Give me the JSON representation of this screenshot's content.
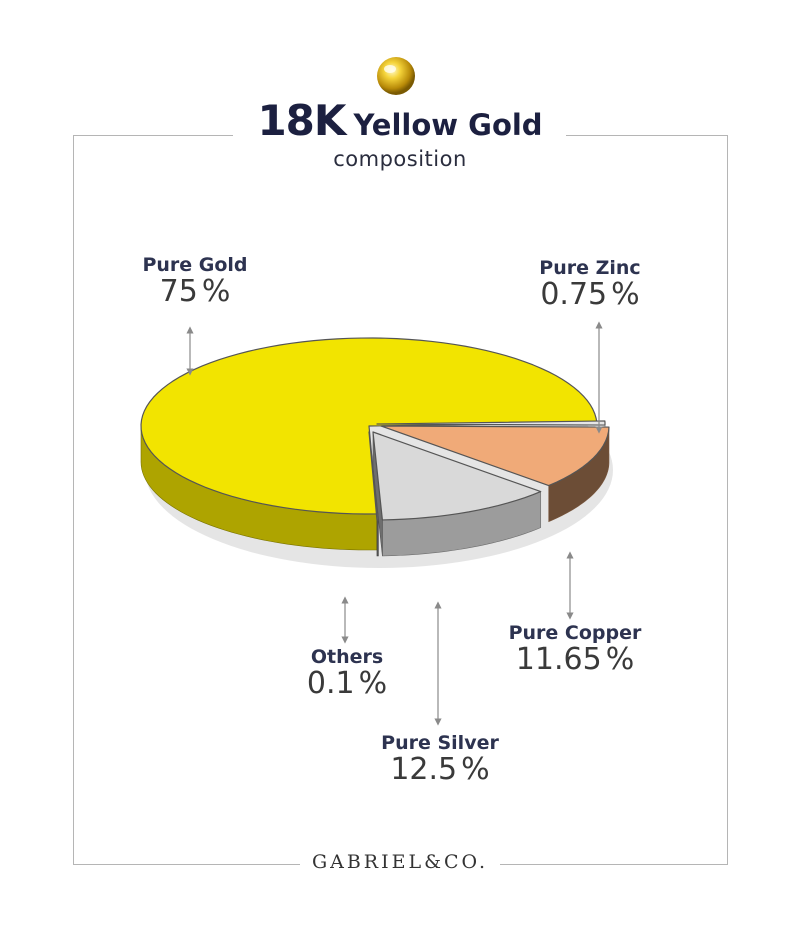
{
  "header": {
    "title_big": "18K",
    "title_rest": "Yellow Gold",
    "subtitle": "composition"
  },
  "brand": "GABRIEL&CO.",
  "chart_data": {
    "type": "pie",
    "title": "18K Yellow Gold composition",
    "unit": "%",
    "slices": [
      {
        "label": "Pure Gold",
        "value": 75,
        "display": "75",
        "color": "#f2e400"
      },
      {
        "label": "Pure Zinc",
        "value": 0.75,
        "display": "0.75",
        "color": "#e6e6e6"
      },
      {
        "label": "Pure Copper",
        "value": 11.65,
        "display": "11.65",
        "color": "#f0aa78"
      },
      {
        "label": "Pure Silver",
        "value": 12.5,
        "display": "12.5",
        "color": "#d9d9d9"
      },
      {
        "label": "Others",
        "value": 0.1,
        "display": "0.1",
        "color": "#7a7a7a"
      }
    ]
  },
  "labels": {
    "gold": {
      "name": "Pure Gold",
      "value": "75",
      "unit": "%"
    },
    "zinc": {
      "name": "Pure Zinc",
      "value": "0.75",
      "unit": "%"
    },
    "copper": {
      "name": "Pure Copper",
      "value": "11.65",
      "unit": "%"
    },
    "silver": {
      "name": "Pure Silver",
      "value": "12.5",
      "unit": "%"
    },
    "others": {
      "name": "Others",
      "value": "0.1",
      "unit": "%"
    }
  }
}
